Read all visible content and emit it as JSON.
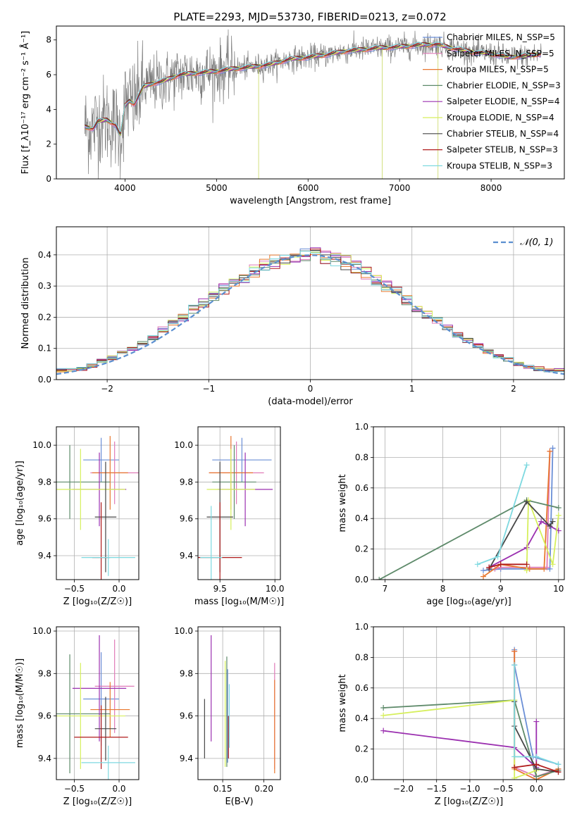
{
  "figure_title": "PLATE=2293, MJD=53730, FIBERID=0213, z=0.072",
  "colors": {
    "Chabrier MILES": "#6b8fd6",
    "Salpeter MILES": "#e07bb8",
    "Kroupa MILES": "#e8772e",
    "Chabrier ELODIE": "#5e8a6a",
    "Salpeter ELODIE": "#9b30b0",
    "Kroupa ELODIE": "#d6ef5c",
    "Chabrier STELIB": "#474747",
    "Salpeter STELIB": "#b01c1c",
    "Kroupa STELIB": "#7ed9e0",
    "normal": "#5b8fd0",
    "grid": "#b0b0b0"
  },
  "chart_data": [
    {
      "type": "line",
      "title": "PLATE=2293, MJD=53730, FIBERID=0213, z=0.072",
      "xlabel": "wavelength [Angstrom, rest frame]",
      "ylabel": "Flux [f_λ10⁻¹⁷ erg cm⁻² s⁻¹ Å⁻¹]",
      "xlim": [
        3250,
        8800
      ],
      "ylim": [
        0,
        8.8
      ],
      "xticks": [
        4000,
        5000,
        6000,
        7000,
        8000
      ],
      "yticks": [
        0,
        2,
        4,
        6,
        8
      ],
      "legend": [
        "Chabrier MILES, N_SSP=5",
        "Salpeter MILES, N_SSP=5",
        "Kroupa MILES, N_SSP=5",
        "Chabrier ELODIE, N_SSP=3",
        "Salpeter ELODIE, N_SSP=4",
        "Kroupa ELODIE, N_SSP=4",
        "Chabrier STELIB, N_SSP=4",
        "Salpeter STELIB, N_SSP=3",
        "Kroupa STELIB, N_SSP=3"
      ],
      "legend_placement": "right",
      "model_continuum": {
        "x": [
          3560,
          3650,
          3700,
          3800,
          3900,
          3950,
          4000,
          4050,
          4100,
          4200,
          4300,
          4400,
          4500,
          4600,
          4800,
          5000,
          5200,
          5400,
          5600,
          5800,
          6000,
          6200,
          6400,
          6600,
          6800,
          7000,
          7200,
          7400,
          7600,
          7800,
          8000,
          8200,
          8400,
          8550
        ],
        "y": [
          3.0,
          2.9,
          3.3,
          3.4,
          3.1,
          2.5,
          4.2,
          4.5,
          4.3,
          5.3,
          5.5,
          5.6,
          5.8,
          6.0,
          6.1,
          6.2,
          6.35,
          6.45,
          6.6,
          6.9,
          7.0,
          7.15,
          7.35,
          7.45,
          7.55,
          7.6,
          7.7,
          7.75,
          7.5,
          7.3,
          7.2,
          7.0,
          7.1,
          7.2
        ]
      },
      "grid": false
    },
    {
      "type": "bar",
      "xlabel": "(data-model)/error",
      "ylabel": "Normed distribution",
      "xlim": [
        -2.5,
        2.5
      ],
      "ylim": [
        0,
        0.49
      ],
      "xticks": [
        -2,
        -1,
        0,
        1,
        2
      ],
      "yticks": [
        0.0,
        0.1,
        0.2,
        0.3,
        0.4
      ],
      "legend": [
        "𝒩(0, 1)"
      ],
      "legend_placement": "top-right",
      "bin_width": 0.1,
      "bin_start": -2.5,
      "values": [
        0.03,
        0.032,
        0.035,
        0.045,
        0.06,
        0.07,
        0.085,
        0.1,
        0.115,
        0.135,
        0.16,
        0.18,
        0.2,
        0.225,
        0.245,
        0.265,
        0.29,
        0.305,
        0.33,
        0.35,
        0.365,
        0.38,
        0.39,
        0.395,
        0.398,
        0.4,
        0.395,
        0.385,
        0.375,
        0.36,
        0.34,
        0.32,
        0.3,
        0.28,
        0.255,
        0.23,
        0.21,
        0.19,
        0.165,
        0.145,
        0.125,
        0.11,
        0.09,
        0.075,
        0.065,
        0.05,
        0.04,
        0.035,
        0.03,
        0.03
      ],
      "grid": true
    },
    {
      "type": "scatter",
      "xlabel": "Z [log₁₀(Z/Z☉)]",
      "ylabel": "age  [log₁₀(age/yr)]",
      "xlim": [
        -0.7,
        0.22
      ],
      "ylim": [
        9.27,
        10.1
      ],
      "xticks": [
        -0.5,
        0.0
      ],
      "yticks": [
        9.4,
        9.6,
        9.8,
        10.0
      ],
      "points": [
        {
          "name": "Chabrier MILES",
          "x": -0.2,
          "y": 9.92,
          "xerr": 0.2,
          "yerr": 0.12
        },
        {
          "name": "Salpeter MILES",
          "x": -0.05,
          "y": 9.85,
          "xerr": 0.27,
          "yerr": 0.17
        },
        {
          "name": "Kroupa MILES",
          "x": -0.1,
          "y": 9.85,
          "xerr": 0.2,
          "yerr": 0.2
        },
        {
          "name": "Chabrier ELODIE",
          "x": -0.55,
          "y": 9.8,
          "xerr": 0.45,
          "yerr": 0.2
        },
        {
          "name": "Salpeter ELODIE",
          "x": -0.22,
          "y": 9.76,
          "xerr": 0.3,
          "yerr": 0.2
        },
        {
          "name": "Kroupa ELODIE",
          "x": -0.43,
          "y": 9.76,
          "xerr": 0.5,
          "yerr": 0.22
        },
        {
          "name": "Chabrier STELIB",
          "x": -0.15,
          "y": 9.61,
          "xerr": 0.12,
          "yerr": 0.3
        },
        {
          "name": "Salpeter STELIB",
          "x": -0.2,
          "y": 9.39,
          "xerr": 0.1,
          "yerr": 0.3
        },
        {
          "name": "Kroupa STELIB",
          "x": -0.12,
          "y": 9.39,
          "xerr": 0.3,
          "yerr": 0.1
        }
      ],
      "grid": true
    },
    {
      "type": "scatter",
      "xlabel": "mass [log₁₀(M/M☉)]",
      "ylabel": "",
      "xlim": [
        9.3,
        10.05
      ],
      "ylim": [
        9.27,
        10.1
      ],
      "xticks": [
        9.5,
        10.0
      ],
      "yticks": [
        9.4,
        9.6,
        9.8,
        10.0
      ],
      "points": [
        {
          "name": "Chabrier MILES",
          "x": 9.7,
          "y": 9.92,
          "xerr": 0.27,
          "yerr": 0.12
        },
        {
          "name": "Salpeter MILES",
          "x": 9.65,
          "y": 9.85,
          "xerr": 0.25,
          "yerr": 0.17
        },
        {
          "name": "Kroupa MILES",
          "x": 9.6,
          "y": 9.85,
          "xerr": 0.2,
          "yerr": 0.2
        },
        {
          "name": "Chabrier ELODIE",
          "x": 9.63,
          "y": 9.8,
          "xerr": 0.2,
          "yerr": 0.2
        },
        {
          "name": "Salpeter ELODIE",
          "x": 9.73,
          "y": 9.76,
          "xerr": 0.25,
          "yerr": 0.2
        },
        {
          "name": "Kroupa ELODIE",
          "x": 9.6,
          "y": 9.76,
          "xerr": 0.22,
          "yerr": 0.22
        },
        {
          "name": "Chabrier STELIB",
          "x": 9.5,
          "y": 9.61,
          "xerr": 0.12,
          "yerr": 0.3
        },
        {
          "name": "Salpeter STELIB",
          "x": 9.5,
          "y": 9.39,
          "xerr": 0.2,
          "yerr": 0.3
        },
        {
          "name": "Kroupa STELIB",
          "x": 9.42,
          "y": 9.39,
          "xerr": 0.1,
          "yerr": 0.28
        }
      ],
      "grid": true
    },
    {
      "type": "line",
      "xlabel": "age  [log₁₀(age/yr)]",
      "ylabel": "mass weight",
      "xlim": [
        6.8,
        10.1
      ],
      "ylim": [
        0,
        1.0
      ],
      "xticks": [
        7,
        8,
        9,
        10
      ],
      "yticks": [
        0.0,
        0.2,
        0.4,
        0.6,
        0.8,
        1.0
      ],
      "series": [
        {
          "name": "Chabrier MILES",
          "x": [
            8.7,
            9.0,
            9.85,
            9.9
          ],
          "y": [
            0.06,
            0.07,
            0.07,
            0.86
          ]
        },
        {
          "name": "Salpeter MILES",
          "x": [
            8.9,
            9.0,
            9.5,
            9.8,
            9.85
          ],
          "y": [
            0.07,
            0.08,
            0.08,
            0.08,
            0.84
          ]
        },
        {
          "name": "Kroupa MILES",
          "x": [
            8.7,
            9.0,
            9.5,
            9.75,
            9.85
          ],
          "y": [
            0.02,
            0.1,
            0.07,
            0.07,
            0.84
          ]
        },
        {
          "name": "Chabrier ELODIE",
          "x": [
            6.9,
            9.45,
            10.0
          ],
          "y": [
            0.0,
            0.52,
            0.47
          ]
        },
        {
          "name": "Salpeter ELODIE",
          "x": [
            8.8,
            9.45,
            9.7,
            10.0
          ],
          "y": [
            0.08,
            0.21,
            0.38,
            0.32
          ]
        },
        {
          "name": "Kroupa ELODIE",
          "x": [
            9.45,
            9.48,
            9.9,
            10.0
          ],
          "y": [
            0.06,
            0.52,
            0.1,
            0.42
          ]
        },
        {
          "name": "Chabrier STELIB",
          "x": [
            8.8,
            9.45,
            9.85,
            9.9
          ],
          "y": [
            0.07,
            0.51,
            0.35,
            0.38
          ]
        },
        {
          "name": "Salpeter STELIB",
          "x": [
            8.8,
            9.0,
            9.45
          ],
          "y": [
            0.08,
            0.1,
            0.1
          ]
        },
        {
          "name": "Kroupa STELIB",
          "x": [
            8.6,
            8.95,
            9.45
          ],
          "y": [
            0.1,
            0.15,
            0.75
          ]
        }
      ],
      "grid": true
    },
    {
      "type": "scatter",
      "xlabel": "Z [log₁₀(Z/Z☉)]",
      "ylabel": "mass [log₁₀(M/M☉)]",
      "xlim": [
        -0.7,
        0.22
      ],
      "ylim": [
        9.3,
        10.02
      ],
      "xticks": [
        -0.5,
        0.0
      ],
      "yticks": [
        9.4,
        9.6,
        9.8,
        10.0
      ],
      "points": [
        {
          "name": "Chabrier MILES",
          "x": -0.2,
          "y": 9.68,
          "xerr": 0.2,
          "yerr": 0.22
        },
        {
          "name": "Salpeter MILES",
          "x": -0.05,
          "y": 9.74,
          "xerr": 0.22,
          "yerr": 0.22
        },
        {
          "name": "Kroupa MILES",
          "x": -0.1,
          "y": 9.63,
          "xerr": 0.22,
          "yerr": 0.13
        },
        {
          "name": "Chabrier ELODIE",
          "x": -0.55,
          "y": 9.61,
          "xerr": 0.45,
          "yerr": 0.28
        },
        {
          "name": "Salpeter ELODIE",
          "x": -0.22,
          "y": 9.73,
          "xerr": 0.3,
          "yerr": 0.25
        },
        {
          "name": "Kroupa ELODIE",
          "x": -0.43,
          "y": 9.6,
          "xerr": 0.5,
          "yerr": 0.25
        },
        {
          "name": "Chabrier STELIB",
          "x": -0.15,
          "y": 9.54,
          "xerr": 0.12,
          "yerr": 0.15
        },
        {
          "name": "Salpeter STELIB",
          "x": -0.2,
          "y": 9.5,
          "xerr": 0.3,
          "yerr": 0.15
        },
        {
          "name": "Kroupa STELIB",
          "x": -0.12,
          "y": 9.38,
          "xerr": 0.3,
          "yerr": 0.08
        }
      ],
      "grid": true
    },
    {
      "type": "scatter",
      "xlabel": "E(B-V)",
      "ylabel": "",
      "xlim": [
        0.12,
        0.22
      ],
      "ylim": [
        9.3,
        10.02
      ],
      "xticks": [
        0.15,
        0.2
      ],
      "yticks": [
        9.4,
        9.6,
        9.8,
        10.0
      ],
      "points": [
        {
          "name": "Chabrier MILES",
          "x": 0.156,
          "y": 9.6,
          "xerr": 0,
          "yerr": 0.22
        },
        {
          "name": "Salpeter MILES",
          "x": 0.213,
          "y": 9.6,
          "xerr": 0,
          "yerr": 0.25
        },
        {
          "name": "Kroupa MILES",
          "x": 0.213,
          "y": 9.55,
          "xerr": 0,
          "yerr": 0.22
        },
        {
          "name": "Chabrier ELODIE",
          "x": 0.155,
          "y": 9.62,
          "xerr": 0,
          "yerr": 0.26
        },
        {
          "name": "Salpeter ELODIE",
          "x": 0.136,
          "y": 9.73,
          "xerr": 0,
          "yerr": 0.25
        },
        {
          "name": "Kroupa ELODIE",
          "x": 0.153,
          "y": 9.61,
          "xerr": 0,
          "yerr": 0.25
        },
        {
          "name": "Chabrier STELIB",
          "x": 0.128,
          "y": 9.54,
          "xerr": 0,
          "yerr": 0.14
        },
        {
          "name": "Salpeter STELIB",
          "x": 0.157,
          "y": 9.5,
          "xerr": 0,
          "yerr": 0.1
        },
        {
          "name": "Kroupa STELIB",
          "x": 0.158,
          "y": 9.6,
          "xerr": 0,
          "yerr": 0.15
        }
      ],
      "grid": true
    },
    {
      "type": "line",
      "xlabel": "Z [log₁₀(Z/Z☉)]",
      "ylabel": "mass weight",
      "xlim": [
        -2.45,
        0.42
      ],
      "ylim": [
        0,
        1.0
      ],
      "xticks": [
        -2.0,
        -1.5,
        -1.0,
        -0.5,
        0.0
      ],
      "yticks": [
        0.0,
        0.2,
        0.4,
        0.6,
        0.8,
        1.0
      ],
      "series": [
        {
          "name": "Chabrier MILES",
          "x": [
            -0.33,
            -0.33,
            -0.05,
            0.33
          ],
          "y": [
            0.85,
            0.75,
            0.15,
            0.1
          ]
        },
        {
          "name": "Salpeter MILES",
          "x": [
            -0.33,
            -0.33,
            0.0,
            0.33
          ],
          "y": [
            0.84,
            0.08,
            0.02,
            0.07
          ]
        },
        {
          "name": "Kroupa MILES",
          "x": [
            -0.33,
            -0.33,
            0.0,
            0.33
          ],
          "y": [
            0.84,
            0.07,
            0.0,
            0.07
          ]
        },
        {
          "name": "Chabrier ELODIE",
          "x": [
            -2.3,
            -0.33,
            0.0,
            0.33
          ],
          "y": [
            0.47,
            0.52,
            0.02,
            0.06
          ]
        },
        {
          "name": "Salpeter ELODIE",
          "x": [
            -2.3,
            -0.33,
            0.0,
            0.0
          ],
          "y": [
            0.32,
            0.21,
            0.08,
            0.38
          ]
        },
        {
          "name": "Kroupa ELODIE",
          "x": [
            -2.3,
            -0.33,
            -0.33,
            0.0
          ],
          "y": [
            0.42,
            0.52,
            0.01,
            0.06
          ]
        },
        {
          "name": "Chabrier STELIB",
          "x": [
            -0.33,
            -0.33,
            0.0,
            0.33
          ],
          "y": [
            0.51,
            0.35,
            0.07,
            0.05
          ]
        },
        {
          "name": "Salpeter STELIB",
          "x": [
            -0.33,
            0.0,
            0.33
          ],
          "y": [
            0.08,
            0.1,
            0.05
          ]
        },
        {
          "name": "Kroupa STELIB",
          "x": [
            -0.33,
            -0.33,
            0.0,
            0.33
          ],
          "y": [
            0.75,
            0.15,
            0.15,
            0.1
          ]
        }
      ],
      "grid": true
    }
  ]
}
